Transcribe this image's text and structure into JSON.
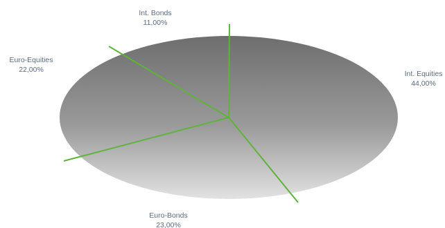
{
  "chart_data": {
    "type": "pie",
    "slices": [
      {
        "label": "Int. Equities",
        "value": 44.0,
        "value_label": "44,00%"
      },
      {
        "label": "Euro-Bonds",
        "value": 23.0,
        "value_label": "23,00%"
      },
      {
        "label": "Euro-Equities",
        "value": 22.0,
        "value_label": "22,00%"
      },
      {
        "label": "Int. Bonds",
        "value": 11.0,
        "value_label": "11,00%"
      }
    ],
    "colors": {
      "fill_light": "#e2e2e2",
      "fill_dark": "#6e6e6e",
      "divider": "#5fb33a",
      "label": "#5a6b82"
    }
  }
}
